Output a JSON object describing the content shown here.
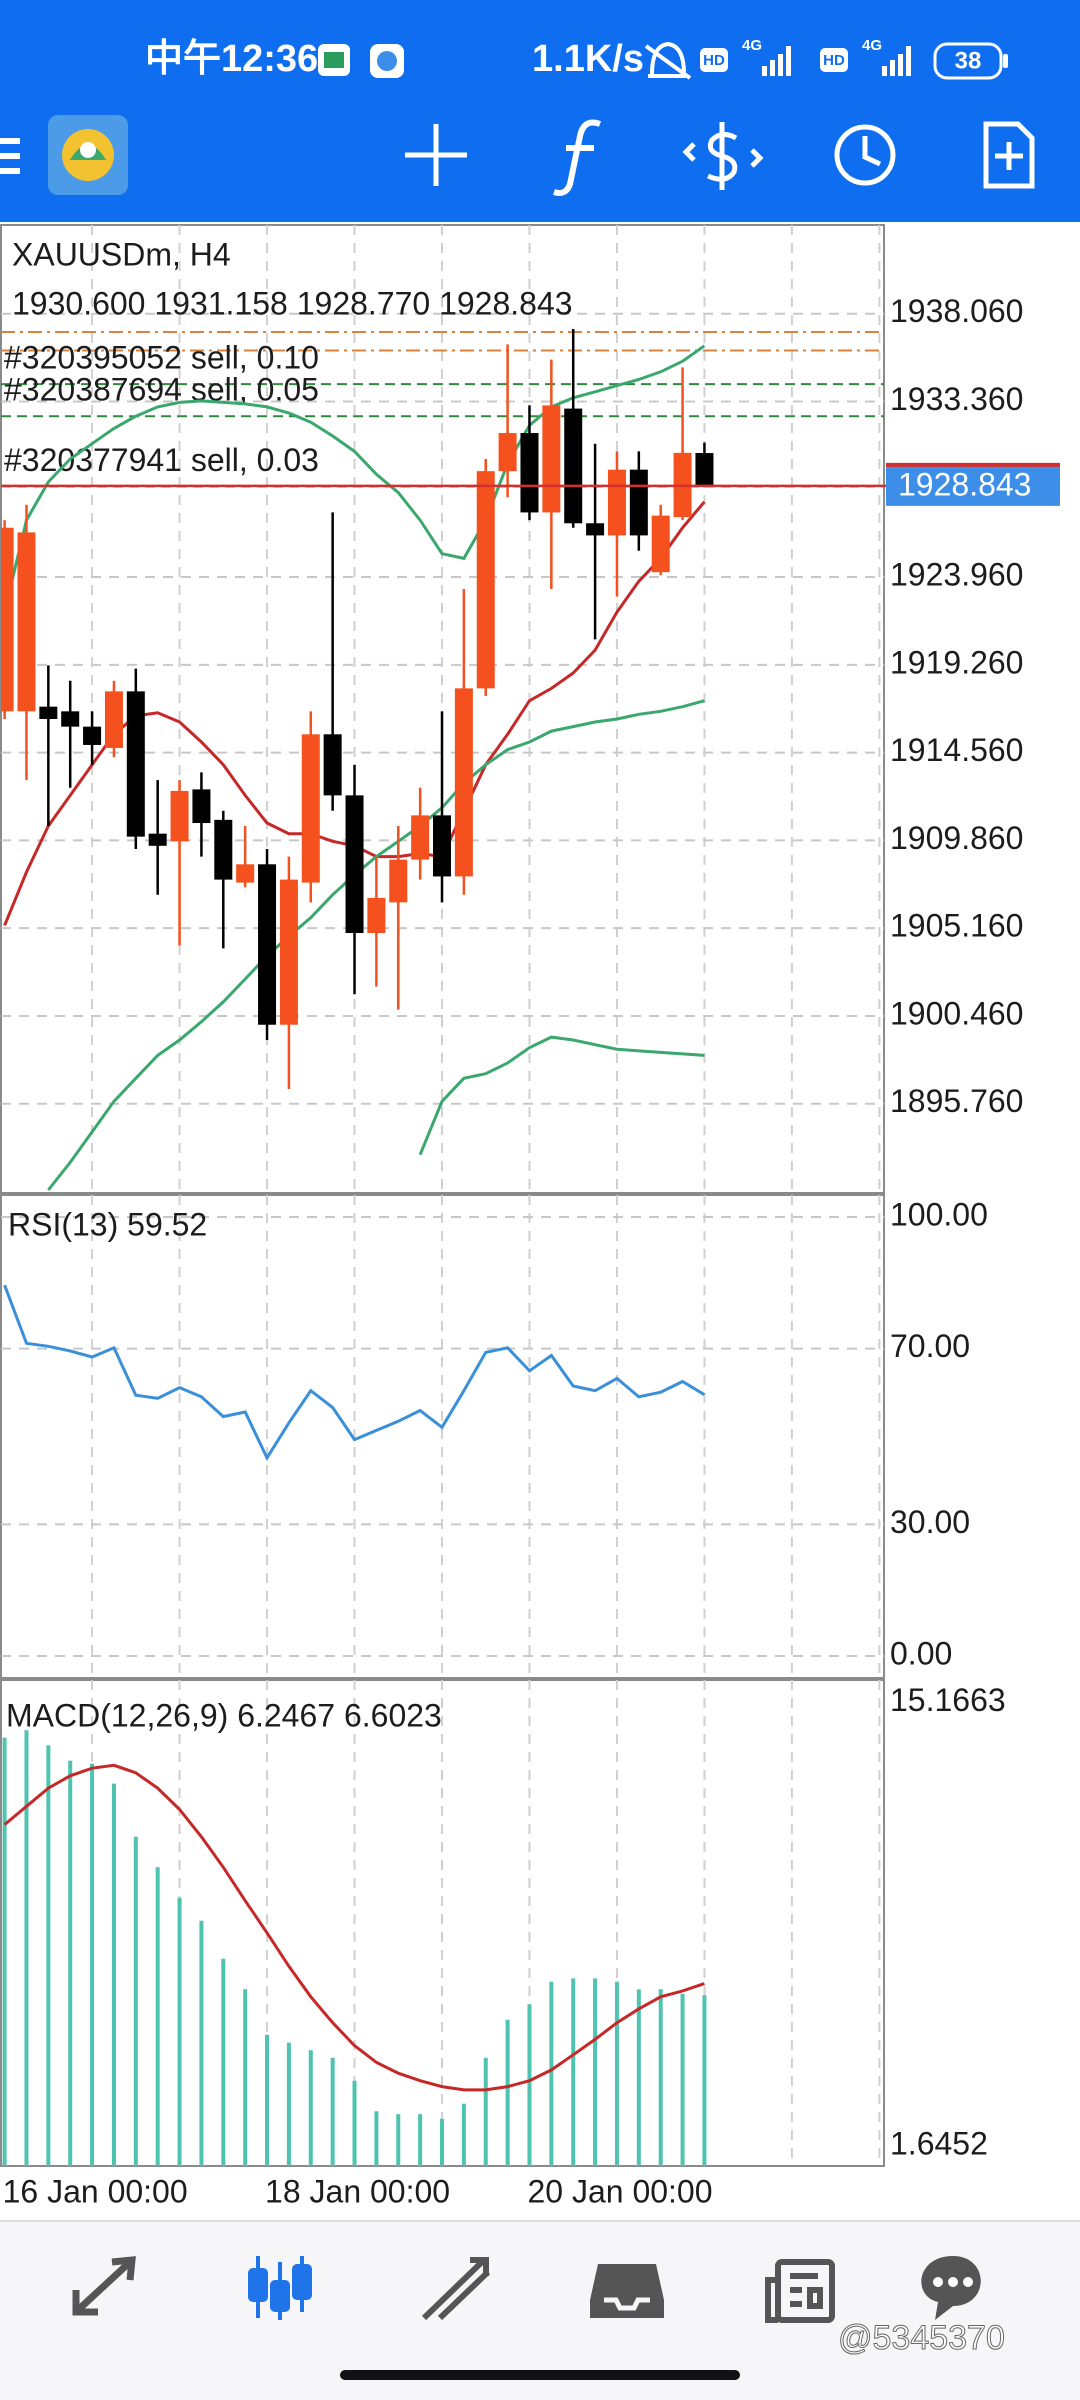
{
  "status_bar": {
    "time": "中午12:36",
    "speed": "1.1K/s",
    "network_labels": [
      "HD",
      "4G",
      "HD",
      "4G"
    ],
    "battery": "38"
  },
  "chart_data": [
    {
      "type": "candlestick",
      "title": "XAUUSDm, H4",
      "subtitle": "1930.600 1931.158 1928.770 1928.843",
      "categories": [
        "16 Jan 00:00",
        null,
        null,
        null,
        null,
        null,
        null,
        null,
        null,
        null,
        null,
        null,
        "18 Jan 00:00",
        null,
        null,
        null,
        null,
        null,
        null,
        null,
        null,
        null,
        null,
        null,
        "20 Jan 00:00",
        null,
        null,
        null,
        null,
        null,
        null,
        null,
        null
      ],
      "open": [
        1916.77,
        1916.77,
        1917.02,
        1916.77,
        1915.95,
        1914.81,
        1917.84,
        1910.22,
        1909.81,
        1912.59,
        1910.96,
        1907.6,
        1908.58,
        1899.99,
        1907.6,
        1915.54,
        1912.27,
        1904.9,
        1906.54,
        1908.83,
        1911.2,
        1907.93,
        1918.0,
        1929.63,
        1931.67,
        1927.42,
        1932.98,
        1926.84,
        1926.19,
        1929.71,
        1924.22,
        1927.17,
        1930.6
      ],
      "high": [
        1927.01,
        1927.83,
        1919.23,
        1918.41,
        1916.77,
        1918.41,
        1919.06,
        1913.09,
        1913.09,
        1913.5,
        1911.45,
        1910.63,
        1909.4,
        1908.99,
        1916.77,
        1927.42,
        1913.91,
        1908.99,
        1910.63,
        1912.68,
        1916.77,
        1923.32,
        1930.28,
        1936.42,
        1933.15,
        1935.6,
        1937.24,
        1931.1,
        1930.69,
        1930.69,
        1927.83,
        1935.19,
        1931.158
      ],
      "low": [
        1916.36,
        1913.09,
        1910.63,
        1912.68,
        1913.91,
        1914.31,
        1909.4,
        1906.95,
        1904.24,
        1908.99,
        1904.08,
        1907.35,
        1899.17,
        1896.55,
        1906.54,
        1911.45,
        1901.62,
        1902.03,
        1900.8,
        1907.76,
        1906.54,
        1906.95,
        1917.59,
        1928.23,
        1927.01,
        1923.32,
        1926.6,
        1920.62,
        1922.91,
        1925.37,
        1924.06,
        1927.01,
        1928.77
      ],
      "close": [
        1926.6,
        1926.35,
        1916.36,
        1915.95,
        1914.97,
        1917.84,
        1910.06,
        1909.57,
        1912.51,
        1910.79,
        1907.76,
        1908.58,
        1899.99,
        1907.76,
        1915.54,
        1912.27,
        1904.9,
        1906.78,
        1908.83,
        1911.2,
        1907.93,
        1918.0,
        1929.63,
        1931.67,
        1927.42,
        1933.15,
        1926.84,
        1926.19,
        1929.71,
        1926.19,
        1927.25,
        1930.61,
        1928.843
      ],
      "up_color": "#f4511e",
      "down_color": "#000000",
      "overlays": [
        {
          "color": "#c62828",
          "values": [
            1905.31,
            1908.17,
            1910.63,
            1912.27,
            1913.91,
            1915.54,
            1916.53,
            1916.69,
            1916.2,
            1915.13,
            1913.91,
            1912.27,
            1910.79,
            1910.22,
            1910.22,
            1909.81,
            1909.57,
            1908.99,
            1908.99,
            1909.16,
            1908.99,
            1911.45,
            1913.91,
            1915.54,
            1917.34,
            1918.0,
            1918.82,
            1920.05,
            1922.09,
            1923.73,
            1924.96,
            1926.6,
            1927.99
          ]
        },
        {
          "color": "#3aa76d",
          "values": [
            1922.09,
            1927.01,
            1929.05,
            1930.28,
            1931.1,
            1931.92,
            1932.57,
            1933.07,
            1933.31,
            1933.39,
            1933.31,
            1933.23,
            1933.07,
            1932.74,
            1932.25,
            1931.51,
            1930.69,
            1929.46,
            1928.48,
            1927.01,
            1925.21,
            1924.96,
            1927.01,
            1930.04,
            1932.08,
            1933.07,
            1933.56,
            1933.88,
            1934.21,
            1934.54,
            1934.95,
            1935.52,
            1936.34
          ]
        },
        {
          "color": "#3aa76d",
          "values": [
            null,
            null,
            1891.14,
            1892.62,
            1894.25,
            1895.89,
            1897.12,
            1898.35,
            1899.17,
            1900.15,
            1901.21,
            1902.44,
            1903.67,
            1904.73,
            1905.72,
            1906.95,
            1908.01,
            1908.99,
            1909.81,
            1910.63,
            1911.61,
            1912.92,
            1913.91,
            1914.72,
            1915.13,
            1915.71,
            1915.95,
            1916.2,
            1916.36,
            1916.61,
            1916.77,
            1917.02,
            1917.34
          ]
        },
        {
          "color": "#3aa76d",
          "values": [
            null,
            null,
            null,
            null,
            null,
            null,
            null,
            null,
            null,
            null,
            null,
            null,
            null,
            null,
            null,
            null,
            null,
            null,
            null,
            1893.03,
            1895.89,
            1897.12,
            1897.37,
            1897.94,
            1898.76,
            1899.33,
            1899.17,
            1898.92,
            1898.68,
            1898.59,
            1898.51,
            1898.43,
            1898.35
          ]
        }
      ],
      "levels": [
        {
          "price": 1937.08,
          "color": "#d9823b"
        },
        {
          "price": 1936.09,
          "color": "#d9823b"
        }
      ],
      "orders": [
        {
          "label": "#320395052 sell, 0.10",
          "price": 1934.29,
          "color": "#2e8b3e"
        },
        {
          "label": "#320387694 sell, 0.05",
          "price": 1932.57,
          "color": "#2e8b3e"
        },
        {
          "label": "#320377941 sell, 0.03",
          "price": 1928.81,
          "color": "#7a8fa8"
        }
      ],
      "bid": {
        "label": "1928.843",
        "price": 1928.843,
        "color": "#d32f2f",
        "box_color": "#3d8ee8"
      },
      "ylim": [
        1890.98,
        1942.81
      ],
      "yticks": [
        {
          "value": 1938.06,
          "label": "1938.060"
        },
        {
          "value": 1933.36,
          "label": "1933.360"
        },
        {
          "value": 1923.96,
          "label": "1923.960"
        },
        {
          "value": 1919.26,
          "label": "1919.260"
        },
        {
          "value": 1914.56,
          "label": "1914.560"
        },
        {
          "value": 1909.86,
          "label": "1909.860"
        },
        {
          "value": 1905.16,
          "label": "1905.160"
        },
        {
          "value": 1900.46,
          "label": "1900.460"
        },
        {
          "value": 1895.76,
          "label": "1895.760"
        }
      ],
      "grid": true
    },
    {
      "type": "line",
      "title": "RSI(13) 59.52",
      "color": "#3a8fd9",
      "values": [
        84.46,
        71.23,
        70.54,
        69.49,
        68.1,
        70.19,
        59.4,
        58.7,
        61.14,
        59.05,
        54.53,
        55.57,
        45.13,
        53.13,
        60.44,
        56.61,
        49.3,
        51.39,
        53.48,
        55.92,
        52.09,
        60.44,
        69.15,
        70.19,
        64.97,
        68.45,
        61.49,
        60.44,
        63.23,
        59.05,
        60.09,
        62.53,
        59.52
      ],
      "ylim": [
        -5,
        105
      ],
      "yticks": [
        {
          "value": 100,
          "label": "100.00"
        },
        {
          "value": 70,
          "label": "70.00"
        },
        {
          "value": 30,
          "label": "30.00"
        },
        {
          "value": 0,
          "label": "0.00"
        }
      ],
      "grid": true
    },
    {
      "type": "macd",
      "title": "MACD(12,26,9) 6.2467 6.6023",
      "histogram_color": "#4dc3b0",
      "signal_color": "#c62828",
      "histogram": [
        14.1,
        14.33,
        13.87,
        13.4,
        13.31,
        12.7,
        11.08,
        10.15,
        9.22,
        8.52,
        7.36,
        6.43,
        5.04,
        4.8,
        4.57,
        4.34,
        3.64,
        2.71,
        2.62,
        2.62,
        2.48,
        2.94,
        4.34,
        5.5,
        5.97,
        6.66,
        6.76,
        6.76,
        6.66,
        6.43,
        6.43,
        6.29,
        6.2467
      ],
      "signal": [
        11.45,
        12.01,
        12.56,
        12.94,
        13.17,
        13.26,
        13.03,
        12.56,
        11.91,
        11.08,
        10.15,
        9.13,
        8.15,
        7.13,
        6.2,
        5.41,
        4.71,
        4.2,
        3.87,
        3.64,
        3.46,
        3.36,
        3.36,
        3.46,
        3.64,
        3.97,
        4.43,
        4.9,
        5.41,
        5.83,
        6.2,
        6.38,
        6.6023
      ],
      "ylim": [
        1.04,
        15.86
      ],
      "yticks": [
        15.1663,
        1.6452
      ],
      "grid": false
    }
  ],
  "watermark": "@5345370"
}
